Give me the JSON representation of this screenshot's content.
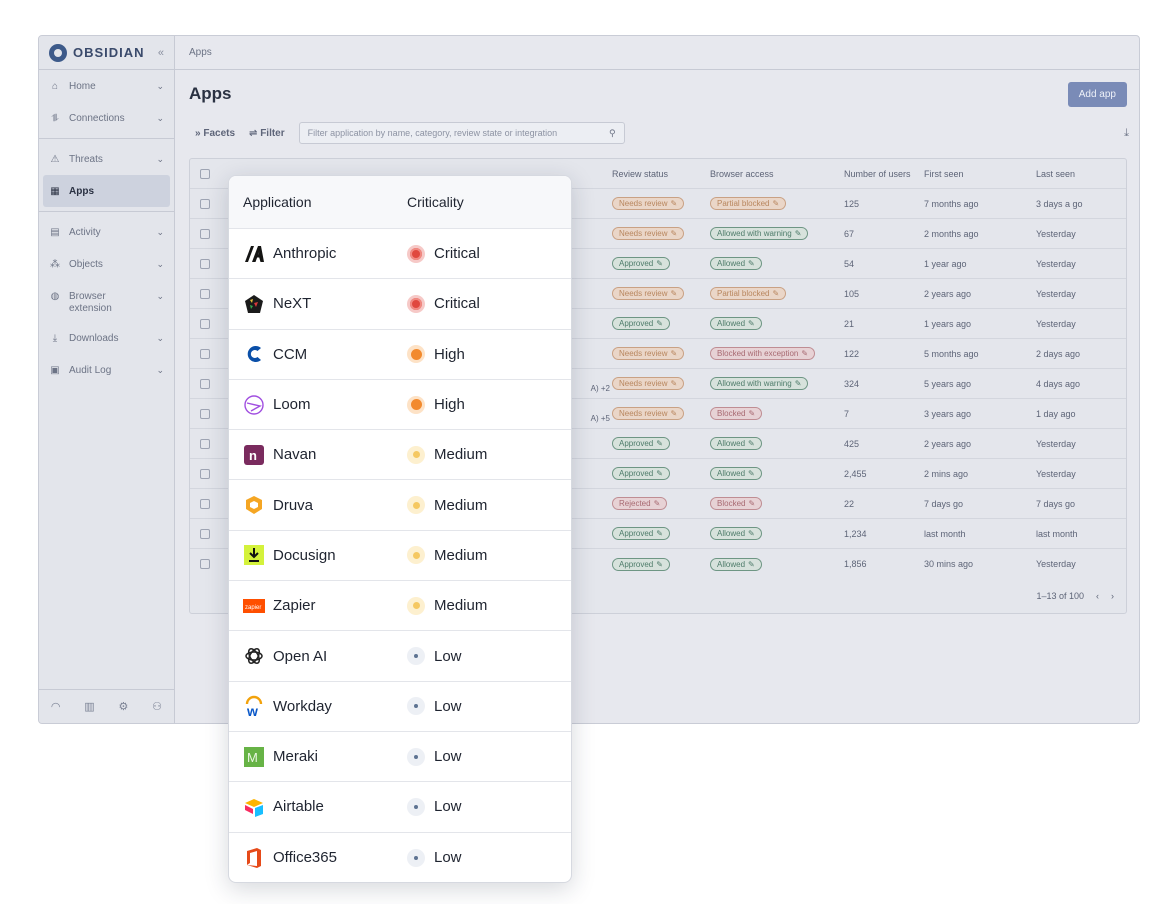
{
  "sidebar": {
    "brand": "OBSIDIAN",
    "items": [
      {
        "label": "Home",
        "icon": "home-icon",
        "glyph": "⌂"
      },
      {
        "label": "Connections",
        "icon": "connections-icon",
        "glyph": "⥮"
      },
      {
        "label": "Threats",
        "icon": "warning-icon",
        "glyph": "⚠"
      },
      {
        "label": "Apps",
        "icon": "grid-icon",
        "glyph": "▦"
      },
      {
        "label": "Activity",
        "icon": "activity-icon",
        "glyph": "▤"
      },
      {
        "label": "Objects",
        "icon": "objects-icon",
        "glyph": "⁂"
      },
      {
        "label": "Browser extension",
        "icon": "globe-icon",
        "glyph": "◍"
      },
      {
        "label": "Downloads",
        "icon": "download-icon",
        "glyph": "⤓"
      },
      {
        "label": "Audit Log",
        "icon": "log-icon",
        "glyph": "▣"
      }
    ]
  },
  "header": {
    "breadcrumb": "Apps",
    "title": "Apps",
    "add_label": "Add app",
    "facets_label": "» Facets",
    "filter_label": "⇌ Filter",
    "search_placeholder": "Filter application by name, category, review state or integration"
  },
  "table": {
    "columns": [
      "Review status",
      "Browser access",
      "Number of users",
      "First seen",
      "Last seen"
    ],
    "rows": [
      {
        "review": "Needs review",
        "rc": "amber",
        "access": "Partial blocked",
        "ac": "amber",
        "users": "125",
        "first": "7 months ago",
        "last": "3 days a go",
        "extra": ""
      },
      {
        "review": "Needs review",
        "rc": "amber",
        "access": "Allowed with warning",
        "ac": "green",
        "users": "67",
        "first": "2 months ago",
        "last": "Yesterday",
        "extra": ""
      },
      {
        "review": "Approved",
        "rc": "green",
        "access": "Allowed",
        "ac": "green",
        "users": "54",
        "first": "1 year ago",
        "last": "Yesterday",
        "extra": ""
      },
      {
        "review": "Needs review",
        "rc": "amber",
        "access": "Partial blocked",
        "ac": "amber",
        "users": "105",
        "first": "2 years ago",
        "last": "Yesterday",
        "extra": ""
      },
      {
        "review": "Approved",
        "rc": "green",
        "access": "Allowed",
        "ac": "green",
        "users": "21",
        "first": "1 years ago",
        "last": "Yesterday",
        "extra": ""
      },
      {
        "review": "Needs review",
        "rc": "amber",
        "access": "Blocked with exception",
        "ac": "red",
        "users": "122",
        "first": "5 months ago",
        "last": "2 days ago",
        "extra": ""
      },
      {
        "review": "Needs review",
        "rc": "amber",
        "access": "Allowed with warning",
        "ac": "green",
        "users": "324",
        "first": "5 years ago",
        "last": "4 days ago",
        "extra": "A)  +2"
      },
      {
        "review": "Needs review",
        "rc": "amber",
        "access": "Blocked",
        "ac": "red",
        "users": "7",
        "first": "3 years ago",
        "last": "1 day ago",
        "extra": "A)  +5"
      },
      {
        "review": "Approved",
        "rc": "green",
        "access": "Allowed",
        "ac": "green",
        "users": "425",
        "first": "2 years ago",
        "last": "Yesterday",
        "extra": ""
      },
      {
        "review": "Approved",
        "rc": "green",
        "access": "Allowed",
        "ac": "green",
        "users": "2,455",
        "first": "2 mins ago",
        "last": "Yesterday",
        "extra": ""
      },
      {
        "review": "Rejected",
        "rc": "red",
        "access": "Blocked",
        "ac": "red",
        "users": "22",
        "first": "7 days go",
        "last": "7 days go",
        "extra": ""
      },
      {
        "review": "Approved",
        "rc": "green",
        "access": "Allowed",
        "ac": "green",
        "users": "1,234",
        "first": "last month",
        "last": "last month",
        "extra": ""
      },
      {
        "review": "Approved",
        "rc": "green",
        "access": "Allowed",
        "ac": "green",
        "users": "1,856",
        "first": "30 mins ago",
        "last": "Yesterday",
        "extra": ""
      }
    ],
    "pagination": "1–13 of 100"
  },
  "popover": {
    "col_app": "Application",
    "col_crit": "Criticality",
    "rows": [
      {
        "app": "Anthropic",
        "icon": "anthropic-logo-icon",
        "crit": "Critical",
        "level": "critical"
      },
      {
        "app": "NeXT",
        "icon": "next-logo-icon",
        "crit": "Critical",
        "level": "critical"
      },
      {
        "app": "CCM",
        "icon": "ccm-logo-icon",
        "crit": "High",
        "level": "high"
      },
      {
        "app": "Loom",
        "icon": "loom-logo-icon",
        "crit": "High",
        "level": "high"
      },
      {
        "app": "Navan",
        "icon": "navan-logo-icon",
        "crit": "Medium",
        "level": "medium"
      },
      {
        "app": "Druva",
        "icon": "druva-logo-icon",
        "crit": "Medium",
        "level": "medium"
      },
      {
        "app": "Docusign",
        "icon": "docusign-logo-icon",
        "crit": "Medium",
        "level": "medium"
      },
      {
        "app": "Zapier",
        "icon": "zapier-logo-icon",
        "crit": "Medium",
        "level": "medium"
      },
      {
        "app": "Open AI",
        "icon": "openai-logo-icon",
        "crit": "Low",
        "level": "low"
      },
      {
        "app": "Workday",
        "icon": "workday-logo-icon",
        "crit": "Low",
        "level": "low"
      },
      {
        "app": "Meraki",
        "icon": "meraki-logo-icon",
        "crit": "Low",
        "level": "low"
      },
      {
        "app": "Airtable",
        "icon": "airtable-logo-icon",
        "crit": "Low",
        "level": "low"
      },
      {
        "app": "Office365",
        "icon": "office365-logo-icon",
        "crit": "Low",
        "level": "low"
      }
    ]
  }
}
